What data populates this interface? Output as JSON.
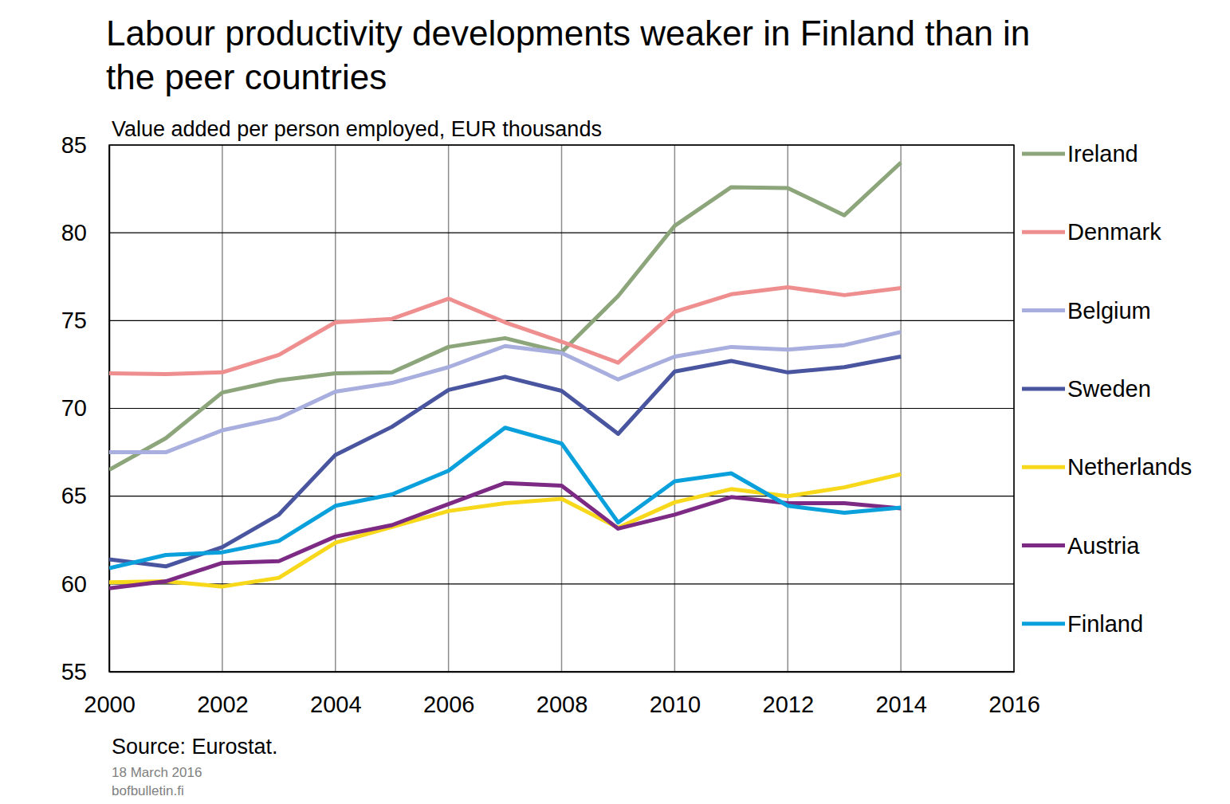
{
  "chart_data": {
    "type": "line",
    "title": "Labour productivity developments weaker in Finland than in the peer countries",
    "subtitle": "Value added per person employed, EUR thousands",
    "source": "Source: Eurostat.",
    "footnotes": [
      "18 March 2016",
      "bofbulletin.fi"
    ],
    "x": [
      2000,
      2001,
      2002,
      2003,
      2004,
      2005,
      2006,
      2007,
      2008,
      2009,
      2010,
      2011,
      2012,
      2013,
      2014
    ],
    "xlim": [
      2000,
      2016
    ],
    "xticks": [
      2000,
      2002,
      2004,
      2006,
      2008,
      2010,
      2012,
      2014,
      2016
    ],
    "ylim": [
      55,
      85
    ],
    "yticks": [
      55,
      60,
      65,
      70,
      75,
      80,
      85
    ],
    "grid": true,
    "legend": "right",
    "series": [
      {
        "name": "Ireland",
        "color": "#8ca57a",
        "values": [
          66.5,
          68.3,
          70.9,
          71.6,
          72.0,
          72.05,
          73.5,
          74.0,
          73.2,
          76.4,
          80.4,
          82.6,
          82.55,
          81.0,
          84.0
        ]
      },
      {
        "name": "Denmark",
        "color": "#ef8e8e",
        "values": [
          72.0,
          71.95,
          72.05,
          73.05,
          74.9,
          75.1,
          76.25,
          74.9,
          73.8,
          72.6,
          75.5,
          76.5,
          76.9,
          76.45,
          76.85
        ]
      },
      {
        "name": "Belgium",
        "color": "#a8aede",
        "values": [
          67.5,
          67.5,
          68.75,
          69.45,
          70.95,
          71.45,
          72.35,
          73.55,
          73.15,
          71.65,
          72.95,
          73.5,
          73.35,
          73.6,
          74.35
        ]
      },
      {
        "name": "Sweden",
        "color": "#4a55a0",
        "values": [
          61.4,
          61.0,
          62.1,
          63.95,
          67.35,
          68.95,
          71.05,
          71.8,
          71.0,
          68.55,
          72.1,
          72.7,
          72.05,
          72.35,
          72.95
        ]
      },
      {
        "name": "Netherlands",
        "color": "#f7d81a",
        "values": [
          60.1,
          60.15,
          59.85,
          60.35,
          62.35,
          63.25,
          64.15,
          64.6,
          64.85,
          63.2,
          64.65,
          65.4,
          65.0,
          65.5,
          66.25
        ]
      },
      {
        "name": "Austria",
        "color": "#7d2a85",
        "values": [
          59.75,
          60.15,
          61.2,
          61.3,
          62.7,
          63.35,
          64.55,
          65.75,
          65.6,
          63.15,
          63.95,
          64.95,
          64.6,
          64.6,
          64.3
        ]
      },
      {
        "name": "Finland",
        "color": "#0aa0dc",
        "values": [
          60.9,
          61.65,
          61.8,
          62.45,
          64.45,
          65.1,
          66.45,
          68.9,
          68.0,
          63.5,
          65.85,
          66.3,
          64.45,
          64.05,
          64.35
        ]
      }
    ]
  }
}
